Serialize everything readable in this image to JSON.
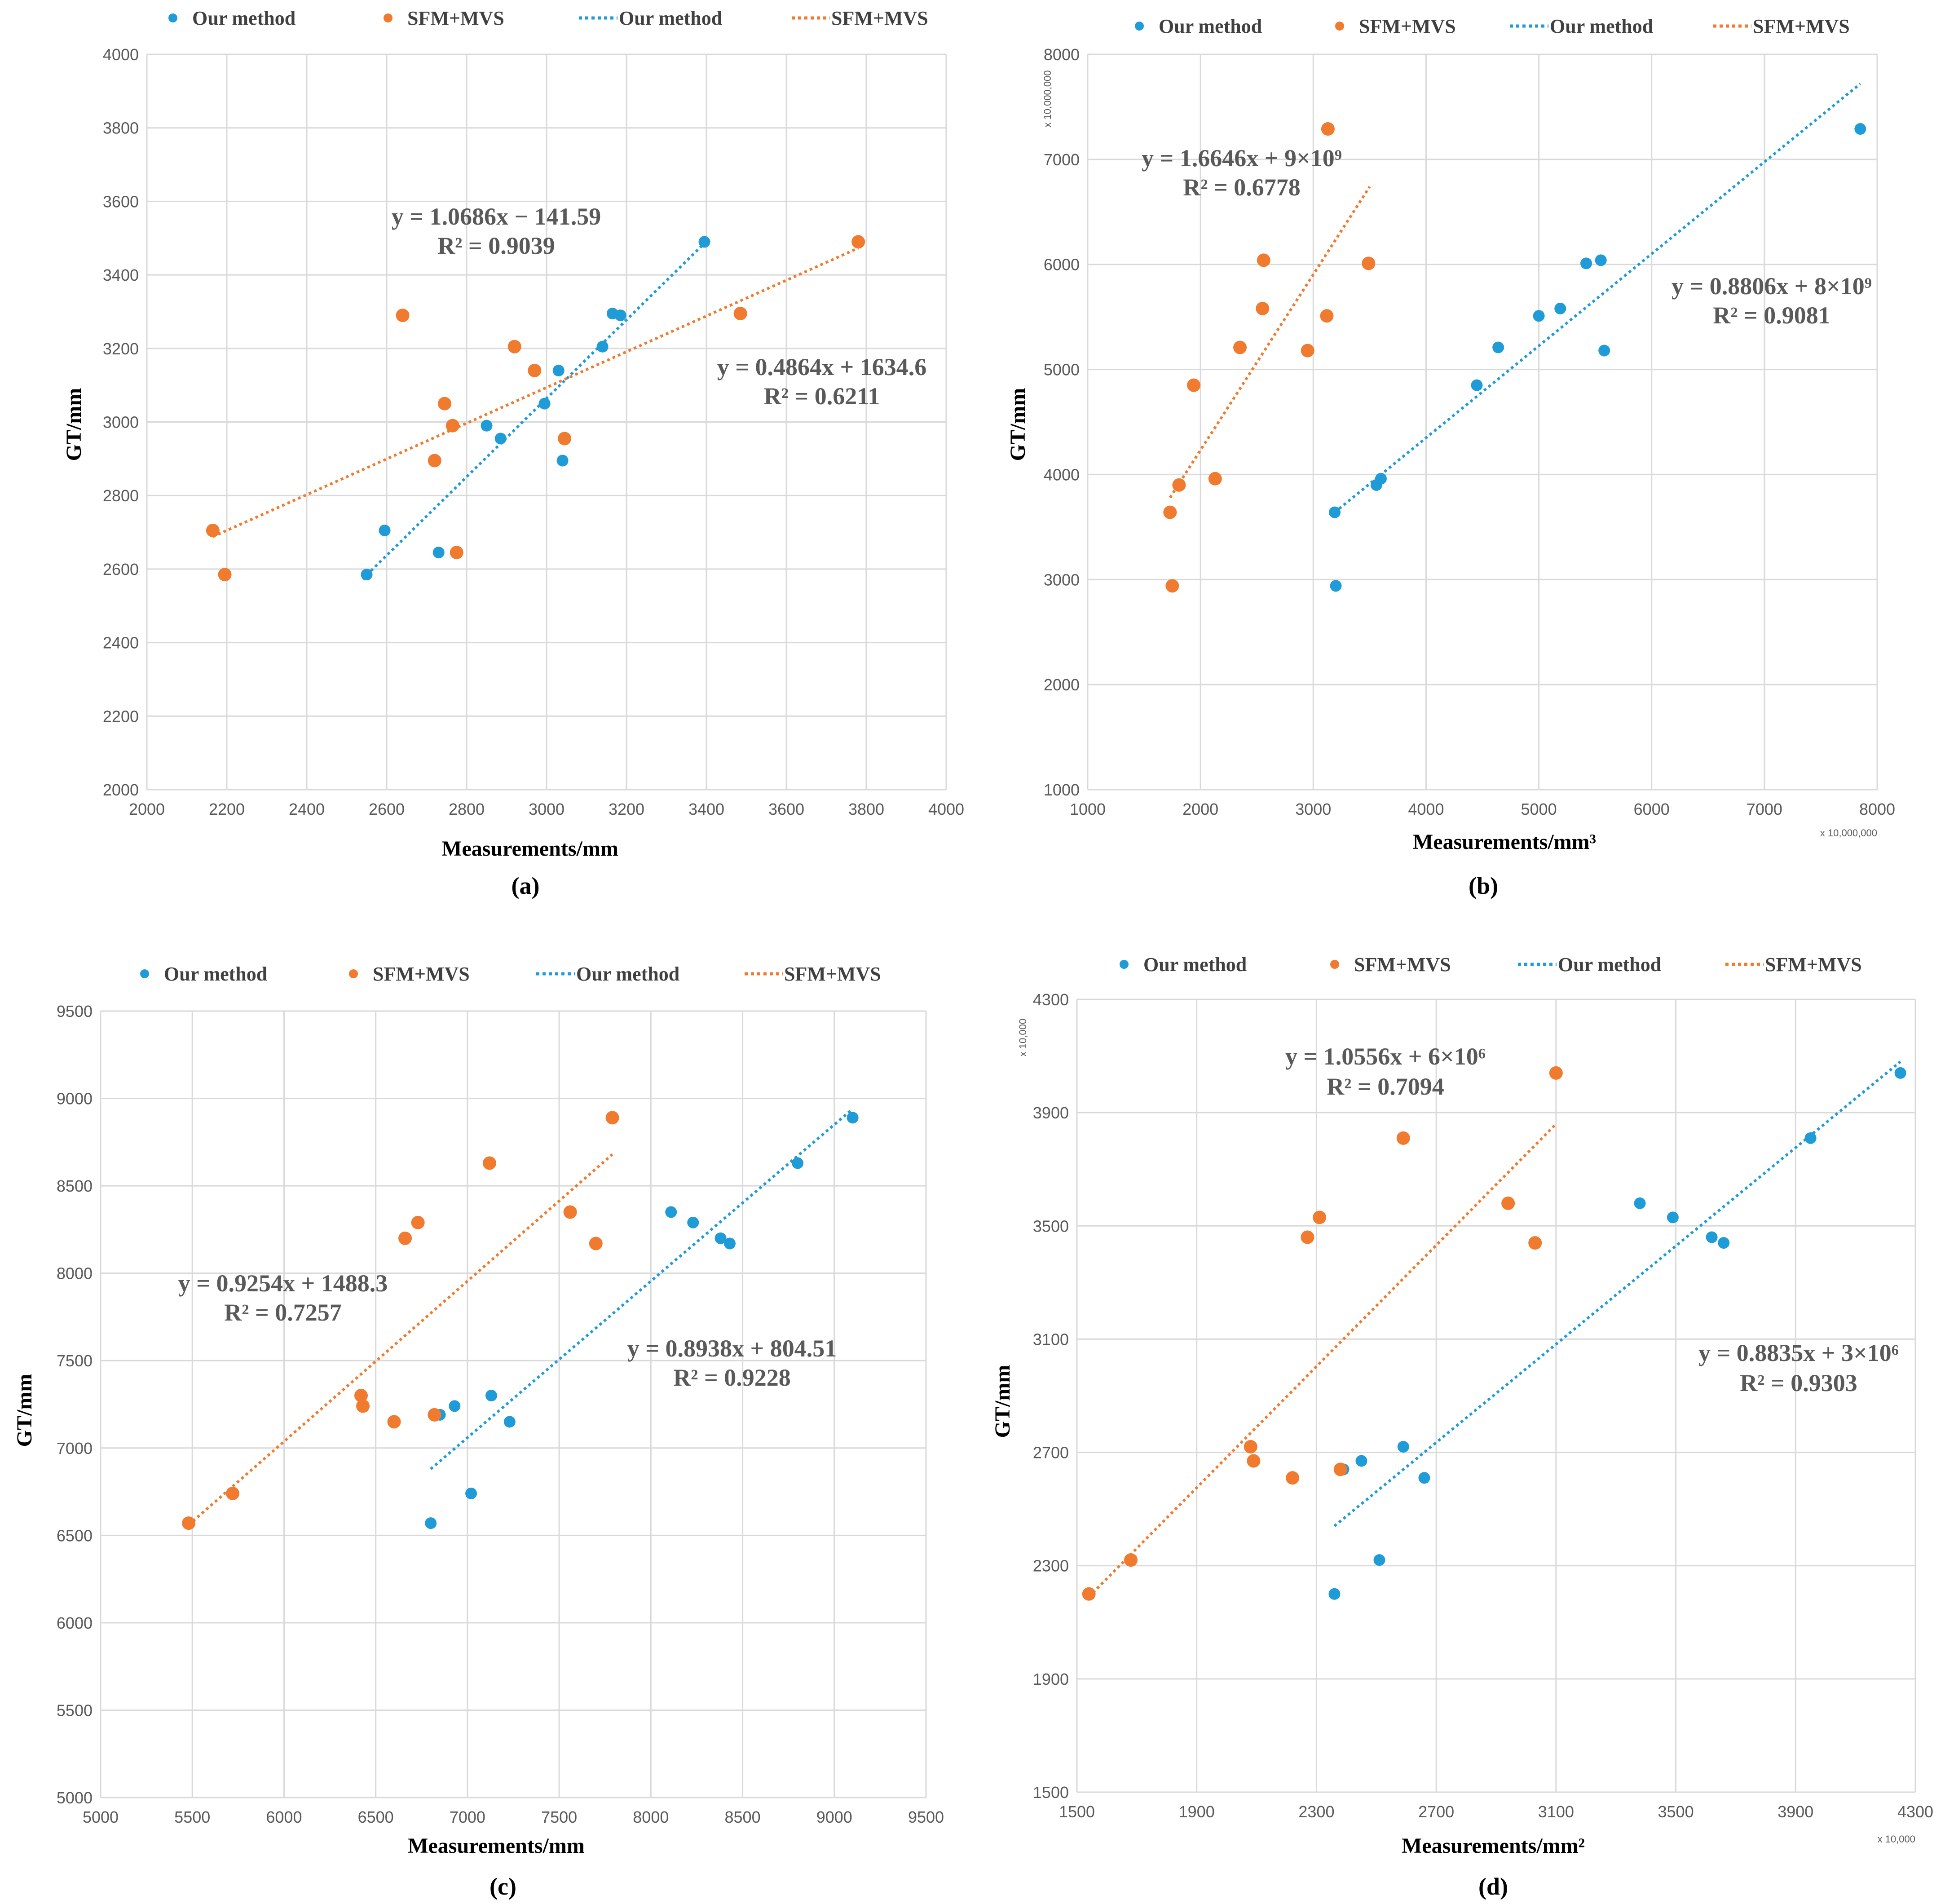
{
  "colors": {
    "our": "#1F9BD7",
    "sfm": "#F07A2E",
    "grid": "#D9D9D9",
    "axis": "#BFBFBF"
  },
  "chart_data": [
    {
      "type": "scatter",
      "caption": "(a)",
      "xlabel": "Measurements/mm",
      "ylabel": "GT/mm",
      "xlim": [
        2000,
        4000
      ],
      "ylim": [
        2000,
        4000
      ],
      "xticks": [
        2000,
        2200,
        2400,
        2600,
        2800,
        3000,
        3200,
        3400,
        3600,
        3800,
        4000
      ],
      "yticks": [
        2000,
        2200,
        2400,
        2600,
        2800,
        3000,
        3200,
        3400,
        3600,
        3800,
        4000
      ],
      "x_scale_note": "",
      "y_scale_note": "",
      "legend": [
        "Our method",
        "SFM+MVS",
        "Our method",
        "SFM+MVS"
      ],
      "series": [
        {
          "name": "Our method",
          "x": [
            2550,
            2595,
            2730,
            2850,
            2885,
            2995,
            3030,
            3040,
            3140,
            3165,
            3185,
            3395
          ],
          "y": [
            2585,
            2705,
            2645,
            2990,
            2955,
            3050,
            3140,
            2895,
            3205,
            3295,
            3290,
            3490
          ]
        },
        {
          "name": "SFM+MVS",
          "x": [
            2165,
            2195,
            2640,
            2720,
            2745,
            2765,
            2775,
            2920,
            2970,
            3045,
            3485,
            3780
          ],
          "y": [
            2705,
            2585,
            3290,
            2895,
            3050,
            2990,
            2645,
            3205,
            3140,
            2955,
            3295,
            3490
          ]
        }
      ],
      "trendlines": [
        {
          "name": "Our method",
          "x": [
            2540,
            3395
          ],
          "y": [
            2573,
            3486
          ]
        },
        {
          "name": "SFM+MVS",
          "x": [
            2165,
            3780
          ],
          "y": [
            2688,
            3473
          ]
        }
      ],
      "equations": [
        {
          "line1": "y = 1.0686x − 141.59",
          "line2": "R² = 0.9039"
        },
        {
          "line1": "y = 0.4864x + 1634.6",
          "line2": "R² = 0.6211"
        }
      ]
    },
    {
      "type": "scatter",
      "caption": "(b)",
      "xlabel": "Measurements/mm³",
      "ylabel": "GT/mm",
      "xlim": [
        1000,
        8000
      ],
      "ylim": [
        1000,
        8000
      ],
      "xticks": [
        1000,
        2000,
        3000,
        4000,
        5000,
        6000,
        7000,
        8000
      ],
      "yticks": [
        1000,
        2000,
        3000,
        4000,
        5000,
        6000,
        7000,
        8000
      ],
      "x_scale_note": "x 10,000,000",
      "y_scale_note": "x 10,000,000",
      "legend": [
        "Our method",
        "SFM+MVS",
        "Our method",
        "SFM+MVS"
      ],
      "series": [
        {
          "name": "Our method",
          "x": [
            3190,
            3200,
            3560,
            3600,
            4450,
            4640,
            5000,
            5190,
            5420,
            5550,
            5580,
            7850
          ],
          "y": [
            3640,
            2940,
            3900,
            3960,
            4850,
            5210,
            5510,
            5580,
            6010,
            6040,
            5180,
            7290
          ]
        },
        {
          "name": "SFM+MVS",
          "x": [
            1730,
            1750,
            1810,
            1940,
            2130,
            2350,
            2550,
            2560,
            2950,
            3120,
            3130,
            3490
          ],
          "y": [
            3640,
            2940,
            3900,
            4850,
            3960,
            5210,
            5580,
            6040,
            5180,
            5510,
            7290,
            6010
          ]
        }
      ],
      "trendlines": [
        {
          "name": "Our method",
          "x": [
            3190,
            7850
          ],
          "y": [
            3640,
            7720
          ]
        },
        {
          "name": "SFM+MVS",
          "x": [
            1730,
            3500
          ],
          "y": [
            3780,
            6740
          ]
        }
      ],
      "equations": [
        {
          "line1": "y = 1.6646x + 9×10⁹",
          "line2": "R² = 0.6778"
        },
        {
          "line1": "y = 0.8806x + 8×10⁹",
          "line2": "R² = 0.9081"
        }
      ]
    },
    {
      "type": "scatter",
      "caption": "(c)",
      "xlabel": "Measurements/mm",
      "ylabel": "GT/mm",
      "xlim": [
        5000,
        9500
      ],
      "ylim": [
        5000,
        9500
      ],
      "xticks": [
        5000,
        5500,
        6000,
        6500,
        7000,
        7500,
        8000,
        8500,
        9000,
        9500
      ],
      "yticks": [
        5000,
        5500,
        6000,
        6500,
        7000,
        7500,
        8000,
        8500,
        9000,
        9500
      ],
      "x_scale_note": "",
      "y_scale_note": "",
      "legend": [
        "Our method",
        "SFM+MVS",
        "Our method",
        "SFM+MVS"
      ],
      "series": [
        {
          "name": "Our method",
          "x": [
            6800,
            6850,
            6930,
            7020,
            7130,
            7230,
            8110,
            8230,
            8380,
            8430,
            8800,
            9100
          ],
          "y": [
            6570,
            7190,
            7240,
            6740,
            7300,
            7150,
            8350,
            8290,
            8200,
            8170,
            8630,
            8890
          ]
        },
        {
          "name": "SFM+MVS",
          "x": [
            5480,
            5720,
            6420,
            6430,
            6600,
            6660,
            6730,
            6820,
            7120,
            7560,
            7700,
            7790
          ],
          "y": [
            6570,
            6740,
            7300,
            7240,
            7150,
            8200,
            8290,
            7190,
            8630,
            8350,
            8170,
            8890
          ]
        }
      ],
      "trendlines": [
        {
          "name": "Our method",
          "x": [
            6800,
            9100
          ],
          "y": [
            6880,
            8940
          ]
        },
        {
          "name": "SFM+MVS",
          "x": [
            5480,
            7790
          ],
          "y": [
            6560,
            8680
          ]
        }
      ],
      "equations": [
        {
          "line1": "y = 0.9254x + 1488.3",
          "line2": "R² = 0.7257"
        },
        {
          "line1": "y = 0.8938x + 804.51",
          "line2": "R² = 0.9228"
        }
      ]
    },
    {
      "type": "scatter",
      "caption": "(d)",
      "xlabel": "Measurements/mm²",
      "ylabel": "GT/mm",
      "xlim": [
        1500,
        4300
      ],
      "ylim": [
        1500,
        4300
      ],
      "xticks": [
        1500,
        1900,
        2300,
        2700,
        3100,
        3500,
        3900,
        4300
      ],
      "yticks": [
        1500,
        1900,
        2300,
        2700,
        3100,
        3500,
        3900,
        4300
      ],
      "x_scale_note": "x 10,000",
      "y_scale_note": "x 10,000",
      "legend": [
        "Our method",
        "SFM+MVS",
        "Our method",
        "SFM+MVS"
      ],
      "series": [
        {
          "name": "Our method",
          "x": [
            2360,
            2390,
            2450,
            2510,
            2590,
            2660,
            3380,
            3490,
            3620,
            3660,
            3950,
            4250
          ],
          "y": [
            2200,
            2640,
            2670,
            2320,
            2720,
            2610,
            3580,
            3530,
            3460,
            3440,
            3810,
            4040
          ]
        },
        {
          "name": "SFM+MVS",
          "x": [
            1540,
            1680,
            2080,
            2090,
            2220,
            2270,
            2310,
            2380,
            2590,
            2940,
            3030,
            3100
          ],
          "y": [
            2200,
            2320,
            2720,
            2670,
            2610,
            3460,
            3530,
            2640,
            3810,
            3580,
            3440,
            4040
          ]
        }
      ],
      "trendlines": [
        {
          "name": "Our method",
          "x": [
            2360,
            4250
          ],
          "y": [
            2440,
            4080
          ]
        },
        {
          "name": "SFM+MVS",
          "x": [
            1540,
            3100
          ],
          "y": [
            2190,
            3860
          ]
        }
      ],
      "equations": [
        {
          "line1": "y = 1.0556x + 6×10⁶",
          "line2": "R² = 0.7094"
        },
        {
          "line1": "y = 0.8835x + 3×10⁶",
          "line2": "R² = 0.9303"
        }
      ]
    }
  ]
}
